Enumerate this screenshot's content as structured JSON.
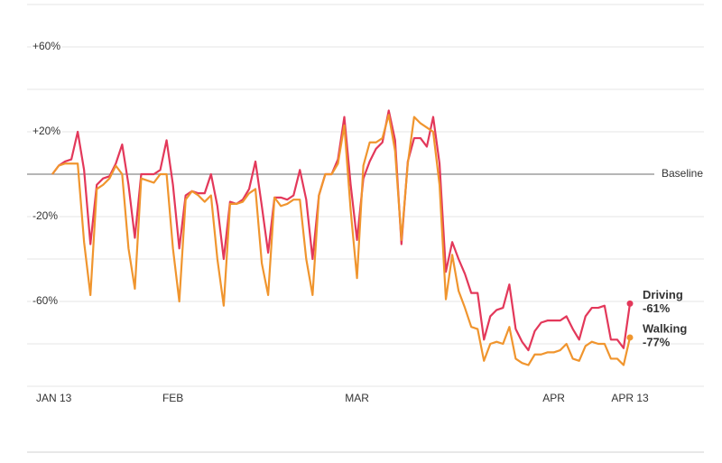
{
  "chart_data": {
    "type": "line",
    "x": [
      0,
      1,
      2,
      3,
      4,
      5,
      6,
      7,
      8,
      9,
      10,
      11,
      12,
      13,
      14,
      15,
      16,
      17,
      18,
      19,
      20,
      21,
      22,
      23,
      24,
      25,
      26,
      27,
      28,
      29,
      30,
      31,
      32,
      33,
      34,
      35,
      36,
      37,
      38,
      39,
      40,
      41,
      42,
      43,
      44,
      45,
      46,
      47,
      48,
      49,
      50,
      51,
      52,
      53,
      54,
      55,
      56,
      57,
      58,
      59,
      60,
      61,
      62,
      63,
      64,
      65,
      66,
      67,
      68,
      69,
      70,
      71,
      72,
      73,
      74,
      75,
      76,
      77,
      78,
      79,
      80,
      81,
      82,
      83,
      84,
      85,
      86,
      87,
      88,
      89,
      90,
      91
    ],
    "xlim": [
      0,
      91
    ],
    "xticks": [
      {
        "value": 0,
        "label": "JAN 13"
      },
      {
        "value": 19,
        "label": "FEB"
      },
      {
        "value": 48,
        "label": "MAR"
      },
      {
        "value": 79,
        "label": "APR"
      },
      {
        "value": 91,
        "label": "APR 13"
      }
    ],
    "ylim": [
      -100,
      80
    ],
    "yticks": [
      {
        "value": 80,
        "label": null
      },
      {
        "value": 60,
        "label": "+60%"
      },
      {
        "value": 40,
        "label": null
      },
      {
        "value": 20,
        "label": "+20%"
      },
      {
        "value": 0,
        "label": "Baseline"
      },
      {
        "value": -20,
        "label": "-20%"
      },
      {
        "value": -40,
        "label": null
      },
      {
        "value": -60,
        "label": "-60%"
      },
      {
        "value": -80,
        "label": null
      },
      {
        "value": -100,
        "label": null
      }
    ],
    "grid": true,
    "series": [
      {
        "name": "Driving",
        "color": "#e3385a",
        "values": [
          0,
          4,
          6,
          7,
          20,
          2,
          -33,
          -5,
          -2,
          -1,
          5,
          14,
          -5,
          -30,
          0,
          0,
          0,
          2,
          16,
          -5,
          -35,
          -10,
          -8,
          -9,
          -9,
          0,
          -15,
          -40,
          -13,
          -14,
          -12,
          -7,
          6,
          -15,
          -37,
          -11,
          -11,
          -12,
          -10,
          2,
          -12,
          -40,
          -10,
          0,
          0,
          7,
          27,
          -5,
          -31,
          -2,
          6,
          12,
          15,
          30,
          16,
          -33,
          6,
          17,
          17,
          13,
          27,
          5,
          -46,
          -32,
          -40,
          -47,
          -56,
          -56,
          -78,
          -67,
          -64,
          -63,
          -52,
          -73,
          -79,
          -83,
          -74,
          -70,
          -69,
          -69,
          -69,
          -67,
          -73,
          -78,
          -67,
          -63,
          -63,
          -62,
          -78,
          -78,
          -82,
          -61
        ],
        "value_labels": [
          null,
          null,
          null,
          null,
          null,
          null,
          null,
          null,
          null,
          null,
          null,
          null,
          null,
          null,
          null,
          null,
          null,
          null,
          null,
          null,
          null,
          null,
          null,
          null,
          null,
          null,
          null,
          null,
          null,
          null,
          null,
          null,
          null,
          null,
          null,
          null,
          null,
          null,
          null,
          null,
          null,
          null,
          null,
          null,
          null,
          null,
          null,
          null,
          null,
          null,
          null,
          null,
          null,
          null,
          null,
          null,
          null,
          null,
          null,
          null,
          null,
          null,
          null,
          null,
          null,
          null,
          null,
          null,
          null,
          null,
          null,
          null,
          null,
          null,
          null,
          null,
          null,
          null,
          null,
          null,
          null,
          null,
          null,
          null,
          null,
          null,
          null,
          null,
          null,
          null,
          null,
          "-61%"
        ]
      },
      {
        "name": "Walking",
        "color": "#f0952e",
        "values": [
          0,
          4,
          5,
          5,
          5,
          -32,
          -57,
          -7,
          -5,
          -2,
          4,
          0,
          -35,
          -54,
          -2,
          -3,
          -4,
          0,
          0,
          -35,
          -60,
          -12,
          -8,
          -10,
          -13,
          -10,
          -40,
          -62,
          -14,
          -14,
          -13,
          -9,
          -7,
          -42,
          -57,
          -11,
          -15,
          -14,
          -12,
          -12,
          -40,
          -57,
          -10,
          0,
          0,
          5,
          23,
          -17,
          -49,
          4,
          15,
          15,
          17,
          28,
          11,
          -31,
          5,
          27,
          24,
          22,
          20,
          -5,
          -59,
          -38,
          -55,
          -63,
          -72,
          -73,
          -88,
          -80,
          -79,
          -80,
          -72,
          -87,
          -89,
          -90,
          -85,
          -85,
          -84,
          -84,
          -83,
          -80,
          -87,
          -88,
          -81,
          -79,
          -80,
          -80,
          -87,
          -87,
          -90,
          -77
        ],
        "value_labels": [
          null,
          null,
          null,
          null,
          null,
          null,
          null,
          null,
          null,
          null,
          null,
          null,
          null,
          null,
          null,
          null,
          null,
          null,
          null,
          null,
          null,
          null,
          null,
          null,
          null,
          null,
          null,
          null,
          null,
          null,
          null,
          null,
          null,
          null,
          null,
          null,
          null,
          null,
          null,
          null,
          null,
          null,
          null,
          null,
          null,
          null,
          null,
          null,
          null,
          null,
          null,
          null,
          null,
          null,
          null,
          null,
          null,
          null,
          null,
          null,
          null,
          null,
          null,
          null,
          null,
          null,
          null,
          null,
          null,
          null,
          null,
          null,
          null,
          null,
          null,
          null,
          null,
          null,
          null,
          null,
          null,
          null,
          null,
          null,
          null,
          null,
          null,
          null,
          null,
          null,
          null,
          "-77%"
        ]
      }
    ]
  }
}
